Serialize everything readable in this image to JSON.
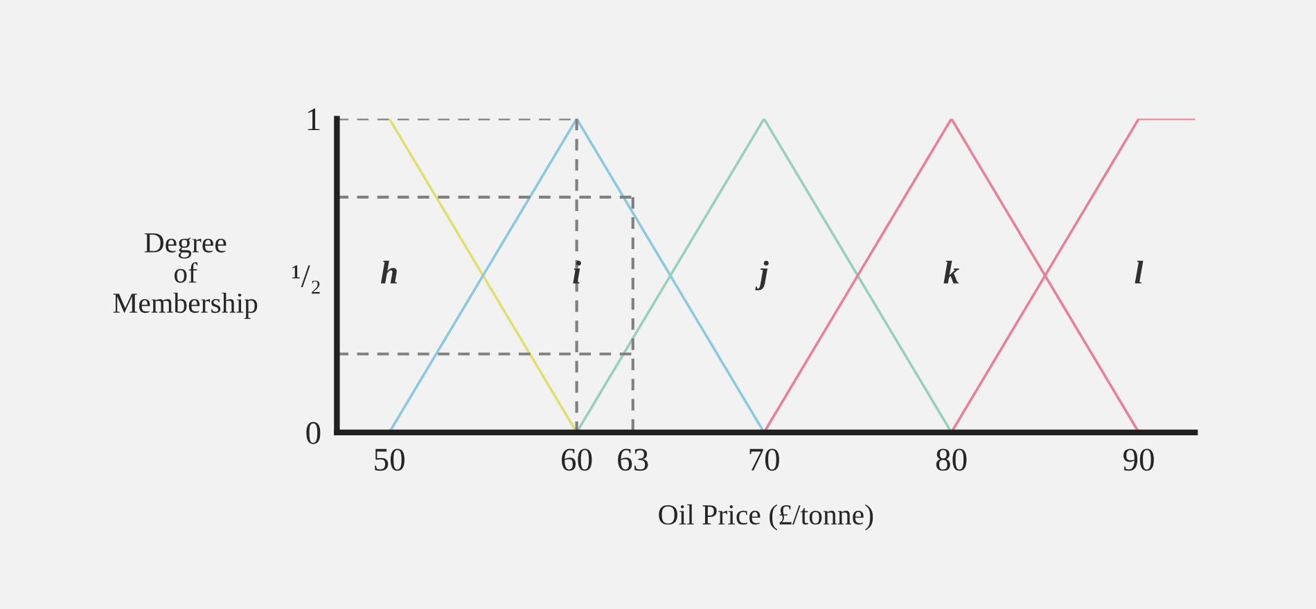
{
  "chart_data": {
    "type": "line",
    "xlabel": "Oil Price (£/tonne)",
    "ylabel": "Degree\nof\nMembership",
    "xlim": [
      47.2,
      93
    ],
    "ylim": [
      0,
      1
    ],
    "xticks": [
      50,
      60,
      63,
      70,
      80,
      90
    ],
    "yticks": [
      0,
      {
        "value": 0.5,
        "label": "¹/₂"
      },
      1
    ],
    "grid": false,
    "legend": false,
    "marker": "none",
    "series": [
      {
        "name": "h",
        "color": "#e0e070",
        "x": [
          50,
          60
        ],
        "values": [
          1,
          0
        ]
      },
      {
        "name": "i",
        "color": "#8cc8e0",
        "x": [
          50,
          60,
          70
        ],
        "values": [
          0,
          1,
          0
        ]
      },
      {
        "name": "j",
        "color": "#98d0c0",
        "x": [
          60,
          70,
          80
        ],
        "values": [
          0,
          1,
          0
        ]
      },
      {
        "name": "k",
        "color": "#e88098",
        "x": [
          70,
          80,
          90
        ],
        "values": [
          0,
          1,
          0
        ]
      },
      {
        "name": "l",
        "color": "#e88098",
        "x": [
          80,
          90,
          93
        ],
        "values": [
          0,
          1,
          1
        ]
      },
      {
        "color": "#808080",
        "line_style": "dashed",
        "x": [
          47.2,
          60
        ],
        "values": [
          1,
          1
        ]
      },
      {
        "color": "#808080",
        "line_style": "dashed",
        "x": [
          60,
          60
        ],
        "values": [
          1,
          0
        ]
      },
      {
        "color": "#808080",
        "line_style": "dashed",
        "x": [
          47.2,
          63
        ],
        "values": [
          0.75,
          0.75
        ]
      },
      {
        "color": "#808080",
        "line_style": "dashed",
        "x": [
          63,
          63
        ],
        "values": [
          0.75,
          0
        ]
      },
      {
        "color": "#808080",
        "line_style": "dashed",
        "x": [
          47.2,
          63
        ],
        "values": [
          0.25,
          0.25
        ]
      }
    ]
  }
}
